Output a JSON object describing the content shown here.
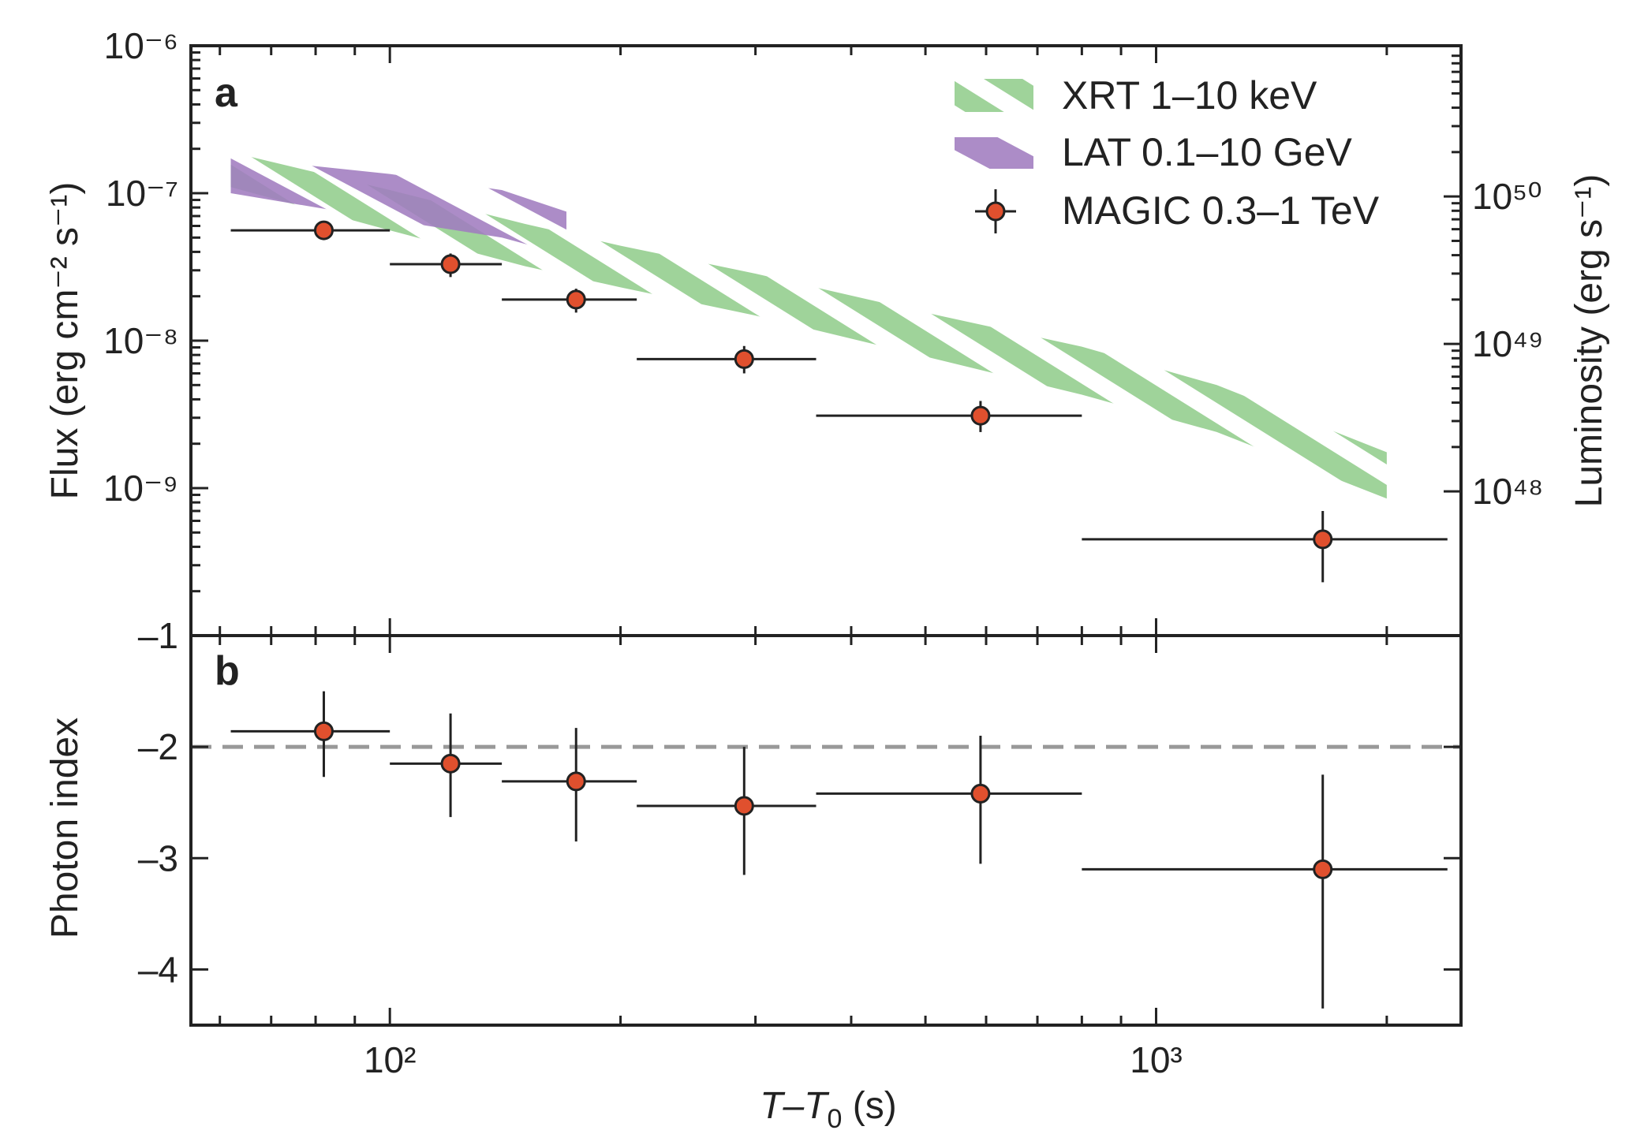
{
  "chart_data": [
    {
      "panel": "a",
      "type": "scatter",
      "x_scale": "log",
      "y_scale": "log",
      "xlim": [
        55,
        2500
      ],
      "ylim": [
        1e-10,
        1e-06
      ],
      "ylabel_left": "Flux (erg cm⁻² s⁻¹)",
      "ylabel_right": "Luminosity (erg s⁻¹)",
      "y_ticks": [
        {
          "value": 1e-06,
          "label": "10⁻⁶"
        },
        {
          "value": 1e-07,
          "label": "10⁻⁷"
        },
        {
          "value": 1e-08,
          "label": "10⁻⁸"
        },
        {
          "value": 1e-09,
          "label": "10⁻⁹"
        }
      ],
      "right_ticks": [
        {
          "flux_equiv": 9.5e-08,
          "label": "10⁵⁰"
        },
        {
          "flux_equiv": 9.5e-09,
          "label": "10⁴⁹"
        },
        {
          "flux_equiv": 9.5e-10,
          "label": "10⁴⁸"
        }
      ],
      "legend_position": "top-right",
      "series": [
        {
          "name": "XRT 1–10 keV",
          "kind": "band",
          "color": "#9fd39a",
          "x": [
            62,
            100,
            150,
            200,
            300,
            500,
            800,
            1200,
            2000
          ],
          "upper": [
            1.9e-07,
            1.05e-07,
            6.2e-08,
            4.4e-08,
            2.85e-08,
            1.55e-08,
            9.1e-09,
            5e-09,
            1.75e-09
          ],
          "lower": [
            1.1e-07,
            5.6e-08,
            3.2e-08,
            2.3e-08,
            1.48e-08,
            7.8e-09,
            4.3e-09,
            2.4e-09,
            8.5e-10
          ]
        },
        {
          "name": "LAT 0.1–10 GeV",
          "kind": "band",
          "color": "#a07cbf",
          "x": [
            62,
            100,
            140,
            170
          ],
          "upper": [
            1.75e-07,
            1.35e-07,
            1.05e-07,
            7.5e-08
          ],
          "lower": [
            1e-07,
            6.6e-08,
            5e-08,
            3.8e-08
          ]
        },
        {
          "name": "MAGIC 0.3–1 TeV",
          "kind": "points",
          "color": "#e0502e",
          "x": [
            82,
            120,
            175,
            290,
            590,
            1650
          ],
          "y": [
            5.6e-08,
            3.3e-08,
            1.9e-08,
            7.5e-09,
            3.1e-09,
            4.5e-10
          ],
          "x_lo": [
            62,
            100,
            140,
            210,
            360,
            800
          ],
          "x_hi": [
            100,
            140,
            210,
            360,
            800,
            2400
          ],
          "y_lo": [
            4.9e-08,
            2.7e-08,
            1.55e-08,
            6e-09,
            2.4e-09,
            2.3e-10
          ],
          "y_hi": [
            6.3e-08,
            3.9e-08,
            2.25e-08,
            9.2e-09,
            3.9e-09,
            7e-10
          ]
        }
      ]
    },
    {
      "panel": "b",
      "type": "scatter",
      "x_scale": "log",
      "xlim": [
        55,
        2500
      ],
      "ylim": [
        -4.5,
        -1
      ],
      "xlabel": "T–T",
      "xlabel_sub": "0",
      "xlabel_unit": " (s)",
      "ylabel": "Photon index",
      "y_ticks": [
        {
          "value": -1,
          "label": "–1"
        },
        {
          "value": -2,
          "label": "–2"
        },
        {
          "value": -3,
          "label": "–3"
        },
        {
          "value": -4,
          "label": "–4"
        }
      ],
      "x_ticks": [
        {
          "value": 100,
          "label": "10²"
        },
        {
          "value": 1000,
          "label": "10³"
        }
      ],
      "reference_line": {
        "y": -2,
        "style": "dashed",
        "color": "#999999"
      },
      "series": [
        {
          "name": "MAGIC 0.3–1 TeV",
          "kind": "points",
          "color": "#e0502e",
          "x": [
            82,
            120,
            175,
            290,
            590,
            1650
          ],
          "y": [
            -1.86,
            -2.15,
            -2.31,
            -2.53,
            -2.42,
            -3.1
          ],
          "x_lo": [
            62,
            100,
            140,
            210,
            360,
            800
          ],
          "x_hi": [
            100,
            140,
            210,
            360,
            800,
            2400
          ],
          "y_lo": [
            -2.27,
            -2.63,
            -2.85,
            -3.15,
            -3.05,
            -4.35
          ],
          "y_hi": [
            -1.5,
            -1.7,
            -1.83,
            -2.0,
            -1.9,
            -2.25
          ]
        }
      ]
    }
  ]
}
